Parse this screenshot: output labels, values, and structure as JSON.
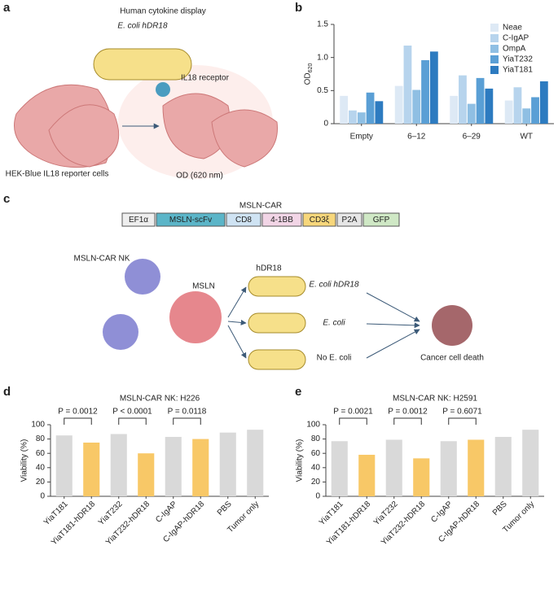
{
  "panel_labels": [
    "a",
    "b",
    "c",
    "d",
    "e"
  ],
  "diagram_a": {
    "title": "Human cytokine display",
    "bacterium": "E. coli hDR18",
    "receptor": "IL18 receptor",
    "cells": "HEK-Blue IL18 reporter cells",
    "readout": "OD (620 nm)"
  },
  "diagram_c": {
    "construct_title": "MSLN-CAR",
    "construct": [
      "EF1α",
      "MSLN-scFv",
      "CD8",
      "4-1BB",
      "CD3ξ",
      "P2A",
      "GFP"
    ],
    "nk": "MSLN-CAR NK",
    "target": "MSLN",
    "cytokine": "hDR18",
    "conditions": [
      "E. coli hDR18",
      "E. coli",
      "No E. coli"
    ],
    "outcome": "Cancer cell death"
  },
  "chart_data": [
    {
      "type": "bar",
      "ylabel": "OD",
      "ylabel_sub": "620",
      "categories": [
        "Empty",
        "6–12",
        "6–29",
        "WT"
      ],
      "series": [
        {
          "name": "Neae",
          "color": "#dde9f5",
          "values": [
            0.42,
            0.57,
            0.42,
            0.35
          ]
        },
        {
          "name": "C-IgAP",
          "color": "#b7d4ed",
          "values": [
            0.2,
            1.18,
            0.73,
            0.55
          ]
        },
        {
          "name": "OmpA",
          "color": "#8fbfe3",
          "values": [
            0.17,
            0.51,
            0.3,
            0.23
          ]
        },
        {
          "name": "YiaT232",
          "color": "#5a9fd5",
          "values": [
            0.47,
            0.96,
            0.69,
            0.4
          ]
        },
        {
          "name": "YiaT181",
          "color": "#2d7bc0",
          "values": [
            0.34,
            1.09,
            0.53,
            0.64
          ]
        }
      ],
      "ylim": [
        0,
        1.5
      ],
      "yticks": [
        0,
        0.5,
        {
          "value": 1,
          "label": "1.0"
        },
        1.5
      ],
      "legend": "upper right"
    },
    {
      "type": "bar",
      "title": "MSLN-CAR NK: H226",
      "ylabel": "Viability (%)",
      "categories": [
        "YiaT181",
        "YiaT181-hDR18",
        "YiaT232",
        "YiaT232-hDR18",
        "C-IgAP",
        "C-IgAP-hDR18",
        "PBS",
        "Tumor only"
      ],
      "values": [
        85,
        75,
        87,
        60,
        83,
        80,
        89,
        93
      ],
      "colors": [
        "#d9d9d9",
        "#f8c867",
        "#d9d9d9",
        "#f8c867",
        "#d9d9d9",
        "#f8c867",
        "#d9d9d9",
        "#d9d9d9"
      ],
      "annotations": [
        "P = 0.0012",
        "P < 0.0001",
        "P = 0.0118"
      ],
      "ylim": [
        0,
        100
      ],
      "yticks": [
        0,
        20,
        40,
        60,
        80,
        100
      ]
    },
    {
      "type": "bar",
      "title": "MSLN-CAR NK: H2591",
      "ylabel": "Viability (%)",
      "categories": [
        "YiaT181",
        "YiaT181-hDR18",
        "YiaT232",
        "YiaT232-hDR18",
        "C-IgAP",
        "C-IgAP-hDR18",
        "PBS",
        "Tumor only"
      ],
      "values": [
        77,
        58,
        79,
        53,
        77,
        79,
        83,
        93
      ],
      "colors": [
        "#d9d9d9",
        "#f8c867",
        "#d9d9d9",
        "#f8c867",
        "#d9d9d9",
        "#f8c867",
        "#d9d9d9",
        "#d9d9d9"
      ],
      "annotations": [
        "P = 0.0021",
        "P = 0.0012",
        "P = 0.6071"
      ],
      "ylim": [
        0,
        100
      ],
      "yticks": [
        0,
        20,
        40,
        60,
        80,
        100
      ]
    }
  ]
}
